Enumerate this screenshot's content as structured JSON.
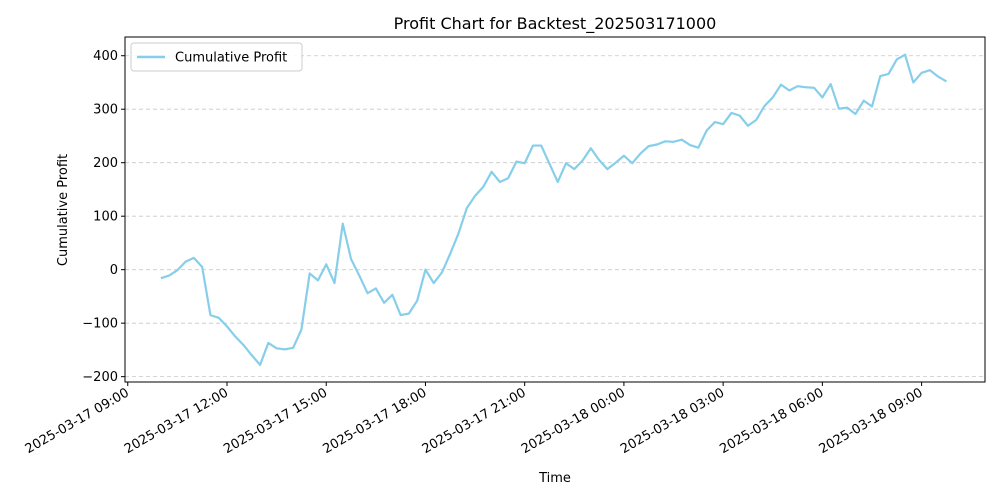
{
  "chart_data": {
    "type": "line",
    "title": "Profit Chart for Backtest_202503171000",
    "xlabel": "Time",
    "ylabel": "Cumulative Profit",
    "legend": {
      "position": "top-left"
    },
    "grid": {
      "x": false,
      "y": true,
      "style": "dashed"
    },
    "ylim": [
      -210,
      435
    ],
    "xlim": [
      "2025-03-17 08:55",
      "2025-03-18 10:55"
    ],
    "x_ticks": [
      {
        "value": "2025-03-17 09:00",
        "label": "2025-03-17 09:00"
      },
      {
        "value": "2025-03-17 12:00",
        "label": "2025-03-17 12:00"
      },
      {
        "value": "2025-03-17 15:00",
        "label": "2025-03-17 15:00"
      },
      {
        "value": "2025-03-17 18:00",
        "label": "2025-03-17 18:00"
      },
      {
        "value": "2025-03-17 21:00",
        "label": "2025-03-17 21:00"
      },
      {
        "value": "2025-03-18 00:00",
        "label": "2025-03-18 00:00"
      },
      {
        "value": "2025-03-18 03:00",
        "label": "2025-03-18 03:00"
      },
      {
        "value": "2025-03-18 06:00",
        "label": "2025-03-18 06:00"
      },
      {
        "value": "2025-03-18 09:00",
        "label": "2025-03-18 09:00"
      }
    ],
    "y_ticks": [
      -200,
      -100,
      0,
      100,
      200,
      300,
      400
    ],
    "series": [
      {
        "name": "Cumulative Profit",
        "color": "#87ceeb",
        "points": [
          [
            "2025-03-17 10:00",
            -16
          ],
          [
            "2025-03-17 10:15",
            -11
          ],
          [
            "2025-03-17 10:30",
            -1
          ],
          [
            "2025-03-17 10:45",
            15
          ],
          [
            "2025-03-17 11:00",
            22
          ],
          [
            "2025-03-17 11:15",
            5
          ],
          [
            "2025-03-17 11:30",
            -85
          ],
          [
            "2025-03-17 11:45",
            -90
          ],
          [
            "2025-03-17 12:00",
            -106
          ],
          [
            "2025-03-17 12:15",
            -125
          ],
          [
            "2025-03-17 12:30",
            -141
          ],
          [
            "2025-03-17 12:45",
            -160
          ],
          [
            "2025-03-17 13:00",
            -178
          ],
          [
            "2025-03-17 13:15",
            -137
          ],
          [
            "2025-03-17 13:30",
            -147
          ],
          [
            "2025-03-17 13:45",
            -149
          ],
          [
            "2025-03-17 14:00",
            -146
          ],
          [
            "2025-03-17 14:15",
            -112
          ],
          [
            "2025-03-17 14:30",
            -7
          ],
          [
            "2025-03-17 14:45",
            -20
          ],
          [
            "2025-03-17 15:00",
            10
          ],
          [
            "2025-03-17 15:15",
            -25
          ],
          [
            "2025-03-17 15:30",
            86
          ],
          [
            "2025-03-17 15:45",
            20
          ],
          [
            "2025-03-17 16:00",
            -11
          ],
          [
            "2025-03-17 16:15",
            -44
          ],
          [
            "2025-03-17 16:30",
            -35
          ],
          [
            "2025-03-17 16:45",
            -62
          ],
          [
            "2025-03-17 17:00",
            -47
          ],
          [
            "2025-03-17 17:15",
            -85
          ],
          [
            "2025-03-17 17:30",
            -82
          ],
          [
            "2025-03-17 17:45",
            -58
          ],
          [
            "2025-03-17 18:00",
            0
          ],
          [
            "2025-03-17 18:15",
            -25
          ],
          [
            "2025-03-17 18:30",
            -5
          ],
          [
            "2025-03-17 18:45",
            30
          ],
          [
            "2025-03-17 19:00",
            68
          ],
          [
            "2025-03-17 19:15",
            115
          ],
          [
            "2025-03-17 19:30",
            138
          ],
          [
            "2025-03-17 19:45",
            155
          ],
          [
            "2025-03-17 20:00",
            183
          ],
          [
            "2025-03-17 20:15",
            164
          ],
          [
            "2025-03-17 20:30",
            171
          ],
          [
            "2025-03-17 20:45",
            202
          ],
          [
            "2025-03-17 21:00",
            199
          ],
          [
            "2025-03-17 21:15",
            232
          ],
          [
            "2025-03-17 21:30",
            232
          ],
          [
            "2025-03-17 21:45",
            198
          ],
          [
            "2025-03-17 22:00",
            164
          ],
          [
            "2025-03-17 22:15",
            199
          ],
          [
            "2025-03-17 22:30",
            188
          ],
          [
            "2025-03-17 22:45",
            204
          ],
          [
            "2025-03-17 23:00",
            227
          ],
          [
            "2025-03-17 23:15",
            205
          ],
          [
            "2025-03-17 23:30",
            188
          ],
          [
            "2025-03-17 23:45",
            200
          ],
          [
            "2025-03-18 00:00",
            213
          ],
          [
            "2025-03-18 00:15",
            199
          ],
          [
            "2025-03-18 00:30",
            217
          ],
          [
            "2025-03-18 00:45",
            231
          ],
          [
            "2025-03-18 01:00",
            234
          ],
          [
            "2025-03-18 01:15",
            240
          ],
          [
            "2025-03-18 01:30",
            239
          ],
          [
            "2025-03-18 01:45",
            243
          ],
          [
            "2025-03-18 02:00",
            233
          ],
          [
            "2025-03-18 02:15",
            228
          ],
          [
            "2025-03-18 02:30",
            260
          ],
          [
            "2025-03-18 02:45",
            276
          ],
          [
            "2025-03-18 03:00",
            272
          ],
          [
            "2025-03-18 03:15",
            293
          ],
          [
            "2025-03-18 03:30",
            288
          ],
          [
            "2025-03-18 03:45",
            269
          ],
          [
            "2025-03-18 04:00",
            280
          ],
          [
            "2025-03-18 04:15",
            306
          ],
          [
            "2025-03-18 04:30",
            322
          ],
          [
            "2025-03-18 04:45",
            346
          ],
          [
            "2025-03-18 05:00",
            335
          ],
          [
            "2025-03-18 05:15",
            343
          ],
          [
            "2025-03-18 05:30",
            341
          ],
          [
            "2025-03-18 05:45",
            340
          ],
          [
            "2025-03-18 06:00",
            322
          ],
          [
            "2025-03-18 06:15",
            347
          ],
          [
            "2025-03-18 06:30",
            301
          ],
          [
            "2025-03-18 06:45",
            303
          ],
          [
            "2025-03-18 07:00",
            291
          ],
          [
            "2025-03-18 07:15",
            316
          ],
          [
            "2025-03-18 07:30",
            305
          ],
          [
            "2025-03-18 07:45",
            362
          ],
          [
            "2025-03-18 08:00",
            366
          ],
          [
            "2025-03-18 08:15",
            393
          ],
          [
            "2025-03-18 08:30",
            402
          ],
          [
            "2025-03-18 08:45",
            350
          ],
          [
            "2025-03-18 09:00",
            368
          ],
          [
            "2025-03-18 09:15",
            373
          ],
          [
            "2025-03-18 09:30",
            361
          ],
          [
            "2025-03-18 09:45",
            352
          ]
        ]
      }
    ]
  }
}
